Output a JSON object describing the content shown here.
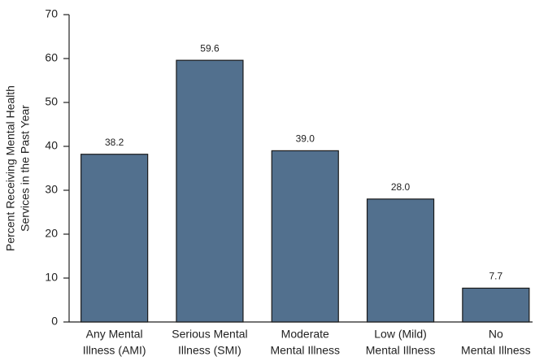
{
  "chart_data": {
    "type": "bar",
    "y_label": [
      "Percent Receiving Mental Health",
      "Services in the Past Year"
    ],
    "categories": [
      [
        "Any Mental",
        "Illness (AMI)"
      ],
      [
        "Serious Mental",
        "Illness (SMI)"
      ],
      [
        "Moderate",
        "Mental Illness"
      ],
      [
        "Low (Mild)",
        "Mental Illness"
      ],
      [
        "No",
        "Mental Illness"
      ]
    ],
    "values": [
      38.2,
      59.6,
      39.0,
      28.0,
      7.7
    ],
    "value_labels": [
      "38.2",
      "59.6",
      "39.0",
      "28.0",
      "7.7"
    ],
    "color": "#52708e",
    "ylim": [
      0,
      70
    ],
    "yticks": [
      0,
      10,
      20,
      30,
      40,
      50,
      60,
      70
    ]
  }
}
